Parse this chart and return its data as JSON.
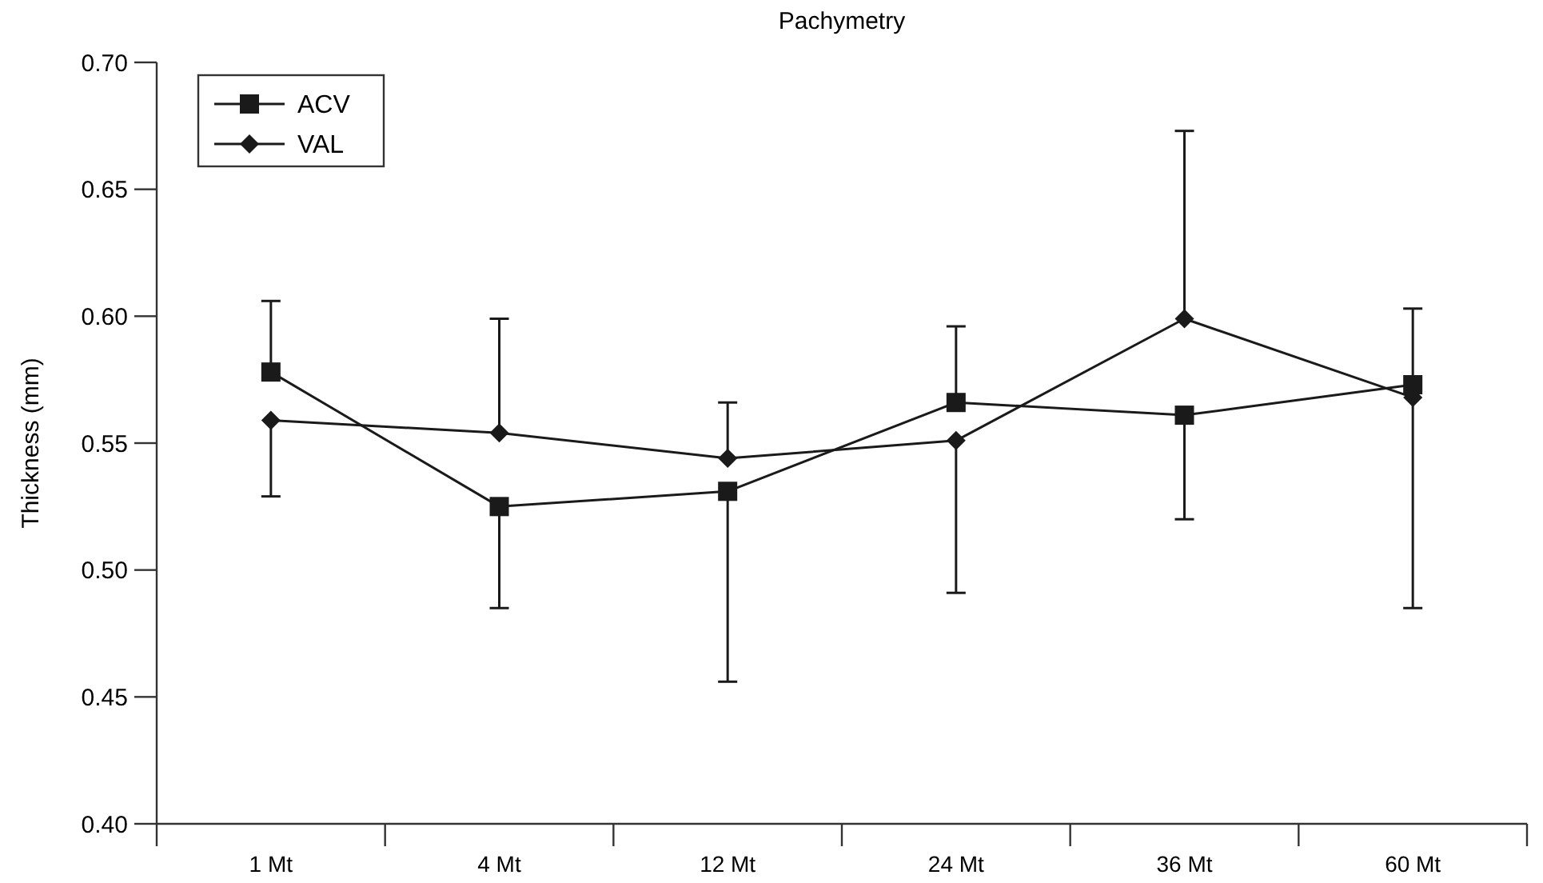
{
  "chart_data": {
    "type": "line",
    "title": "Pachymetry",
    "ylabel": "Thickness (mm)",
    "categories": [
      "1 Mt",
      "4 Mt",
      "12 Mt",
      "24 Mt",
      "36 Mt",
      "60 Mt"
    ],
    "series": [
      {
        "name": "ACV",
        "color": "#1a1a1a",
        "marker": "square",
        "values": [
          0.578,
          0.525,
          0.531,
          0.566,
          0.561,
          0.573
        ],
        "errors": [
          [
            0.578,
            0.606
          ],
          [
            0.485,
            0.525
          ],
          [
            0.456,
            0.531
          ],
          [
            0.566,
            0.596
          ],
          [
            0.52,
            0.561
          ],
          [
            0.573,
            0.603
          ]
        ]
      },
      {
        "name": "VAL",
        "color": "#1a1a1a",
        "marker": "diamond",
        "values": [
          0.559,
          0.554,
          0.544,
          0.551,
          0.599,
          0.568
        ],
        "errors": [
          [
            0.529,
            0.559
          ],
          [
            0.554,
            0.599
          ],
          [
            0.544,
            0.566
          ],
          [
            0.491,
            0.551
          ],
          [
            0.599,
            0.673
          ],
          [
            0.485,
            0.568
          ]
        ]
      }
    ],
    "ylim": [
      0.4,
      0.7
    ],
    "yticks": [
      {
        "value": 0.4,
        "label": "0.40"
      },
      {
        "value": 0.45,
        "label": "0.45"
      },
      {
        "value": 0.5,
        "label": "0.50"
      },
      {
        "value": 0.55,
        "label": "0.55"
      },
      {
        "value": 0.6,
        "label": "0.60"
      },
      {
        "value": 0.65,
        "label": "0.65"
      },
      {
        "value": 0.7,
        "label": "0.70"
      }
    ],
    "grid": false,
    "legend": "top left"
  }
}
